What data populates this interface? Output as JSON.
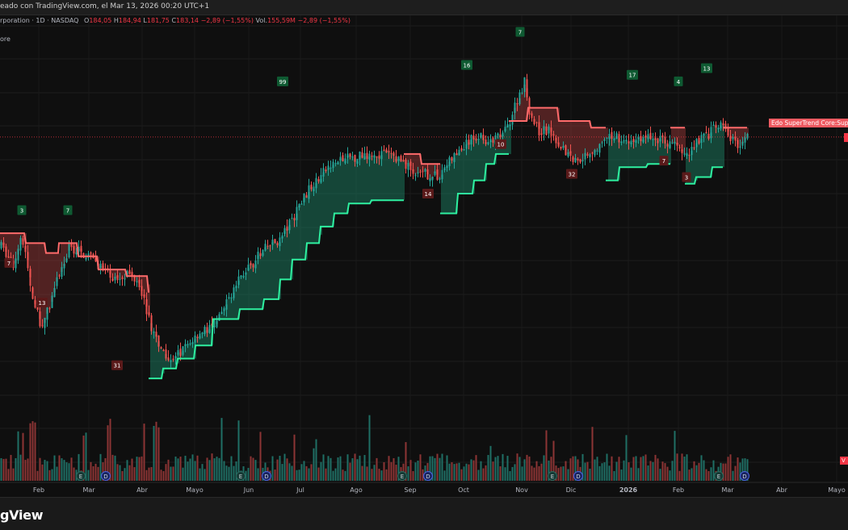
{
  "caption": "eado con TradingView.com, el Mar 13, 2026 00:20 UTC+1",
  "legend": {
    "symbol": "rporation · 1D · NASDAQ",
    "open_label": "O",
    "open": "184,05",
    "high_label": "H",
    "high": "184,94",
    "low_label": "L",
    "low": "181,75",
    "close_label": "C",
    "close": "183,14",
    "change": "−2,89 (−1,55%)",
    "vol_label": "Vol.",
    "vol": "155,59M",
    "vol_change": "−2,89 (−1,55%)"
  },
  "indicator_legend": "ore",
  "supertrend_label": "Edo SuperTrend Core:Super",
  "volume_tag": "V",
  "footer_brand": "gView",
  "colors": {
    "background": "#0f0f0f",
    "bull": "#26a69a",
    "bear": "#ef5350",
    "supertrend_up": "#2ef0a0",
    "supertrend_down": "#ff6b6b",
    "badge_up": "#0f5a32",
    "badge_down": "#5a1a1a",
    "price_line": "#f23645"
  },
  "chart_data": {
    "type": "candlestick",
    "timeframe": "1D",
    "exchange": "NASDAQ",
    "last_price": 183.14,
    "x_tick_labels": [
      "Feb",
      "Mar",
      "Abr",
      "Mayo",
      "Jun",
      "Jul",
      "Ago",
      "Sep",
      "Oct",
      "Nov",
      "Dic",
      "2026",
      "Feb",
      "Mar",
      "Abr",
      "Mayo"
    ],
    "price_path": [
      [
        0,
        150
      ],
      [
        15,
        144
      ],
      [
        25,
        154
      ],
      [
        40,
        133
      ],
      [
        50,
        126
      ],
      [
        60,
        132
      ],
      [
        70,
        140
      ],
      [
        85,
        150
      ],
      [
        100,
        148
      ],
      [
        115,
        146
      ],
      [
        130,
        142
      ],
      [
        140,
        140
      ],
      [
        155,
        142
      ],
      [
        170,
        140
      ],
      [
        185,
        126
      ],
      [
        200,
        118
      ],
      [
        215,
        116
      ],
      [
        230,
        120
      ],
      [
        245,
        124
      ],
      [
        258,
        125
      ],
      [
        270,
        128
      ],
      [
        285,
        136
      ],
      [
        300,
        142
      ],
      [
        315,
        146
      ],
      [
        330,
        150
      ],
      [
        345,
        152
      ],
      [
        360,
        158
      ],
      [
        375,
        165
      ],
      [
        390,
        170
      ],
      [
        405,
        174
      ],
      [
        420,
        176
      ],
      [
        435,
        177
      ],
      [
        450,
        178
      ],
      [
        465,
        178
      ],
      [
        480,
        178
      ],
      [
        495,
        176
      ],
      [
        505,
        174
      ],
      [
        515,
        171
      ],
      [
        525,
        172
      ],
      [
        540,
        171
      ],
      [
        555,
        176
      ],
      [
        565,
        178
      ],
      [
        580,
        182
      ],
      [
        595,
        184
      ],
      [
        605,
        181
      ],
      [
        615,
        183
      ],
      [
        625,
        185
      ],
      [
        638,
        194
      ],
      [
        648,
        200
      ],
      [
        655,
        190
      ],
      [
        665,
        185
      ],
      [
        680,
        185
      ],
      [
        695,
        180
      ],
      [
        710,
        176
      ],
      [
        725,
        178
      ],
      [
        740,
        180
      ],
      [
        750,
        182
      ],
      [
        760,
        184
      ],
      [
        775,
        181
      ],
      [
        790,
        183
      ],
      [
        805,
        183
      ],
      [
        820,
        182
      ],
      [
        835,
        181
      ],
      [
        848,
        177
      ],
      [
        860,
        182
      ],
      [
        875,
        184
      ],
      [
        890,
        187
      ],
      [
        905,
        182
      ],
      [
        915,
        181
      ],
      [
        925,
        183
      ]
    ],
    "supertrend_segments": [
      {
        "dir": "down",
        "points": [
          [
            0,
            154
          ],
          [
            30,
            154
          ],
          [
            32,
            151
          ],
          [
            55,
            151
          ],
          [
            57,
            148
          ],
          [
            72,
            148
          ],
          [
            73,
            151
          ],
          [
            95,
            151
          ],
          [
            97,
            147
          ],
          [
            120,
            147
          ],
          [
            122,
            143
          ],
          [
            155,
            143
          ],
          [
            157,
            141
          ],
          [
            182,
            141
          ],
          [
            184,
            136
          ]
        ]
      },
      {
        "dir": "up",
        "points": [
          [
            184,
            110
          ],
          [
            200,
            110
          ],
          [
            202,
            113
          ],
          [
            218,
            113
          ],
          [
            220,
            116
          ],
          [
            240,
            116
          ],
          [
            242,
            120
          ],
          [
            262,
            120
          ],
          [
            264,
            128
          ],
          [
            295,
            128
          ],
          [
            297,
            131
          ],
          [
            325,
            131
          ],
          [
            327,
            134
          ],
          [
            345,
            134
          ],
          [
            347,
            140
          ],
          [
            360,
            140
          ],
          [
            362,
            146
          ],
          [
            378,
            146
          ],
          [
            380,
            151
          ],
          [
            395,
            151
          ],
          [
            397,
            156
          ],
          [
            412,
            156
          ],
          [
            414,
            160
          ],
          [
            430,
            160
          ],
          [
            432,
            163
          ],
          [
            458,
            163
          ],
          [
            460,
            164
          ],
          [
            500,
            164
          ]
        ]
      },
      {
        "dir": "down",
        "points": [
          [
            500,
            178
          ],
          [
            520,
            178
          ],
          [
            522,
            175
          ],
          [
            545,
            175
          ]
        ]
      },
      {
        "dir": "up",
        "points": [
          [
            545,
            160
          ],
          [
            565,
            160
          ],
          [
            567,
            166
          ],
          [
            585,
            166
          ],
          [
            587,
            170
          ],
          [
            600,
            170
          ],
          [
            602,
            175
          ],
          [
            612,
            175
          ],
          [
            614,
            178
          ],
          [
            630,
            178
          ]
        ]
      },
      {
        "dir": "down",
        "points": [
          [
            630,
            188
          ],
          [
            652,
            188
          ],
          [
            654,
            192
          ],
          [
            690,
            192
          ],
          [
            692,
            188
          ],
          [
            730,
            188
          ],
          [
            732,
            186
          ],
          [
            750,
            186
          ]
        ]
      },
      {
        "dir": "up",
        "points": [
          [
            750,
            170
          ],
          [
            765,
            170
          ],
          [
            767,
            174
          ],
          [
            800,
            174
          ],
          [
            802,
            175
          ],
          [
            830,
            175
          ]
        ]
      },
      {
        "dir": "down",
        "points": [
          [
            830,
            186
          ],
          [
            848,
            186
          ]
        ]
      },
      {
        "dir": "up",
        "points": [
          [
            848,
            169
          ],
          [
            860,
            169
          ],
          [
            862,
            171
          ],
          [
            880,
            171
          ],
          [
            882,
            174
          ],
          [
            895,
            174
          ]
        ]
      },
      {
        "dir": "down",
        "points": [
          [
            895,
            186
          ],
          [
            925,
            186
          ]
        ]
      }
    ],
    "signals": [
      {
        "label": "3",
        "dir": "up",
        "x": 27,
        "price": 161
      },
      {
        "label": "7",
        "dir": "up",
        "x": 84,
        "price": 161
      },
      {
        "label": "99",
        "dir": "up",
        "x": 350,
        "price": 200
      },
      {
        "label": "16",
        "dir": "up",
        "x": 578,
        "price": 205
      },
      {
        "label": "7",
        "dir": "up",
        "x": 644,
        "price": 215
      },
      {
        "label": "17",
        "dir": "up",
        "x": 783,
        "price": 202
      },
      {
        "label": "4",
        "dir": "up",
        "x": 840,
        "price": 200
      },
      {
        "label": "13",
        "dir": "up",
        "x": 875,
        "price": 204
      },
      {
        "label": "7",
        "dir": "down",
        "x": 11,
        "price": 145
      },
      {
        "label": "13",
        "dir": "down",
        "x": 52,
        "price": 133
      },
      {
        "label": "31",
        "dir": "down",
        "x": 145,
        "price": 114
      },
      {
        "label": "14",
        "dir": "down",
        "x": 530,
        "price": 166
      },
      {
        "label": "10",
        "dir": "down",
        "x": 620,
        "price": 181
      },
      {
        "label": "32",
        "dir": "down",
        "x": 708,
        "price": 172
      },
      {
        "label": "7",
        "dir": "down",
        "x": 822,
        "price": 176
      },
      {
        "label": "3",
        "dir": "down",
        "x": 850,
        "price": 171
      }
    ],
    "events": [
      {
        "type": "E",
        "x": 100
      },
      {
        "type": "D",
        "x": 131
      },
      {
        "type": "E",
        "x": 298
      },
      {
        "type": "D",
        "x": 330
      },
      {
        "type": "E",
        "x": 498
      },
      {
        "type": "D",
        "x": 530
      },
      {
        "type": "E",
        "x": 684
      },
      {
        "type": "D",
        "x": 716
      },
      {
        "type": "E",
        "x": 890
      },
      {
        "type": "D",
        "x": 922
      }
    ]
  }
}
